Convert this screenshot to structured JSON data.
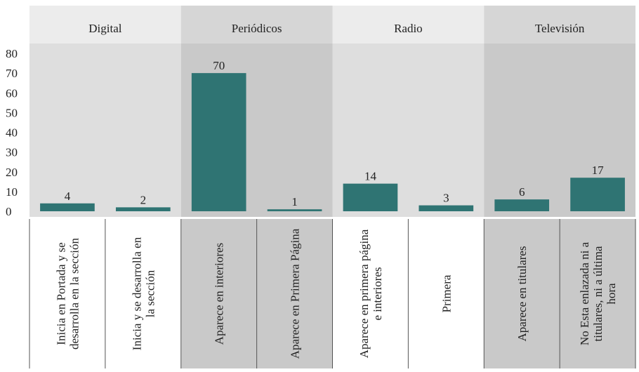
{
  "chart_data": {
    "type": "bar",
    "title": "",
    "xlabel": "",
    "ylabel": "",
    "ylim": [
      0,
      80
    ],
    "yticks": [
      0,
      10,
      20,
      30,
      40,
      50,
      60,
      70,
      80
    ],
    "grid": false,
    "legend": "none",
    "groups": [
      {
        "name": "Digital",
        "categories": [
          "Inicia en Portada y se desarrolla en la sección",
          "Inicia y se desarrolla en la sección"
        ],
        "values": [
          4,
          2
        ]
      },
      {
        "name": "Periódicos",
        "categories": [
          "Aparece en interiores",
          "Aparece en Primera Página"
        ],
        "values": [
          70,
          1
        ]
      },
      {
        "name": "Radio",
        "categories": [
          "Aparece en primera página e interiores",
          "Primera"
        ],
        "values": [
          14,
          3
        ]
      },
      {
        "name": "Televisión",
        "categories": [
          "Aparece en titulares",
          "No Esta enlazada ni a titulares, ni a última hora"
        ],
        "values": [
          6,
          17
        ]
      }
    ],
    "colors": {
      "bar": "#2f7473",
      "panel_light": "#dedede",
      "panel_dark": "#c9c9c9",
      "header_light": "#ececec",
      "header_dark": "#d6d6d6"
    }
  }
}
